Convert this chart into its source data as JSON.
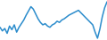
{
  "values": [
    38,
    32,
    36,
    28,
    40,
    34,
    42,
    30,
    38,
    44,
    50,
    58,
    65,
    72,
    68,
    60,
    52,
    46,
    42,
    44,
    40,
    38,
    42,
    44,
    48,
    46,
    50,
    52,
    55,
    58,
    60,
    62,
    64,
    66,
    62,
    58,
    54,
    50,
    46,
    42,
    30,
    20,
    35,
    55,
    70,
    80
  ],
  "line_color": "#2b8ccc",
  "background_color": "#ffffff",
  "linewidth": 1.1
}
